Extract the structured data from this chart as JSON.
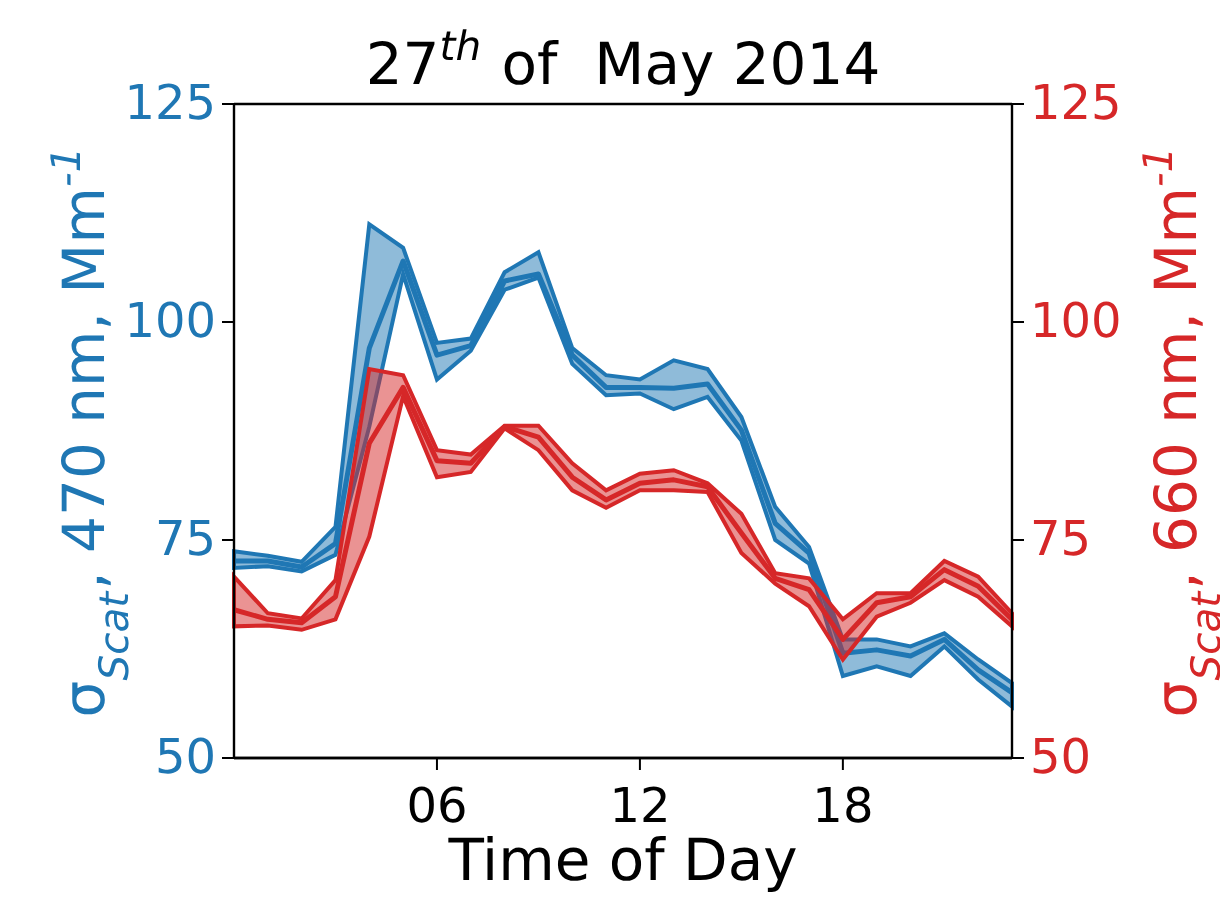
{
  "chart_data": {
    "type": "line",
    "title": "27$^{th}$ of  May 2014",
    "xlabel": "Time of Day",
    "ylabel": "σ$_{Scat}$, 470 nm, Mm$^{-1}$",
    "y2label": "σ$_{Scat}$, 660 nm, Mm$^{-1}$",
    "x": [
      0,
      1,
      2,
      3,
      4,
      5,
      6,
      7,
      8,
      9,
      10,
      11,
      12,
      13,
      14,
      15,
      16,
      17,
      18,
      19,
      20,
      21,
      22,
      23
    ],
    "series": [
      {
        "color": "#1f77b4",
        "values": [
          72.6,
          72.6,
          71.9,
          74.6,
          97,
          107,
          96.2,
          97.3,
          104.7,
          105.5,
          96.2,
          92.5,
          92.5,
          92.4,
          92.9,
          87.6,
          76.9,
          73.5,
          62,
          62.4,
          61.7,
          63.6,
          60.1,
          57.5
        ],
        "lower": [
          71.8,
          72,
          71.4,
          73.3,
          88,
          105.5,
          93.4,
          96.7,
          103.7,
          105.1,
          95.2,
          91.6,
          91.8,
          90,
          91.4,
          86.4,
          75,
          72.3,
          59.4,
          60.5,
          59.4,
          62.8,
          59,
          55.9
        ],
        "upper": [
          73.7,
          73.2,
          72.5,
          76.5,
          111.2,
          108.5,
          97.6,
          98.1,
          105.7,
          108,
          97,
          93.9,
          93.4,
          95.6,
          94.6,
          89.1,
          78.8,
          74.2,
          63.6,
          63.6,
          62.8,
          64.3,
          61.3,
          58.6
        ]
      },
      {
        "color": "#d62728",
        "axis": "y2",
        "values": [
          67,
          65.9,
          65.5,
          68.5,
          86.1,
          92.5,
          84.1,
          83.8,
          88,
          86.8,
          82.2,
          79.6,
          81.5,
          81.9,
          81.1,
          75.8,
          70.6,
          69.3,
          63.6,
          67.8,
          68.5,
          71.6,
          69.7,
          65.9
        ],
        "lower": [
          65.1,
          65.2,
          64.7,
          65.9,
          75.4,
          91.5,
          82.2,
          82.8,
          87.8,
          85.3,
          80.7,
          78.7,
          80.7,
          80.7,
          80.5,
          73.5,
          70,
          67.4,
          61.3,
          66.2,
          67.8,
          70.4,
          68.5,
          65.1
        ],
        "upper": [
          70.8,
          66.6,
          66,
          70.4,
          94.6,
          93.9,
          85.3,
          84.8,
          88.1,
          88.1,
          83.8,
          80.7,
          82.6,
          83,
          81.5,
          78,
          71.2,
          70.6,
          65.9,
          68.9,
          68.9,
          72.6,
          70.8,
          66.6
        ]
      }
    ],
    "xlim": [
      0,
      23
    ],
    "xticks": [
      {
        "value": 6,
        "label": "06"
      },
      {
        "value": 12,
        "label": "12"
      },
      {
        "value": 18,
        "label": "18"
      }
    ],
    "ylim": [
      50,
      125
    ],
    "yticks": [
      50,
      75,
      100,
      125
    ],
    "y2lim": [
      50,
      125
    ],
    "y2ticks": [
      50,
      75,
      100,
      125
    ],
    "grid": false,
    "marker": "none",
    "line_style": "solid"
  }
}
